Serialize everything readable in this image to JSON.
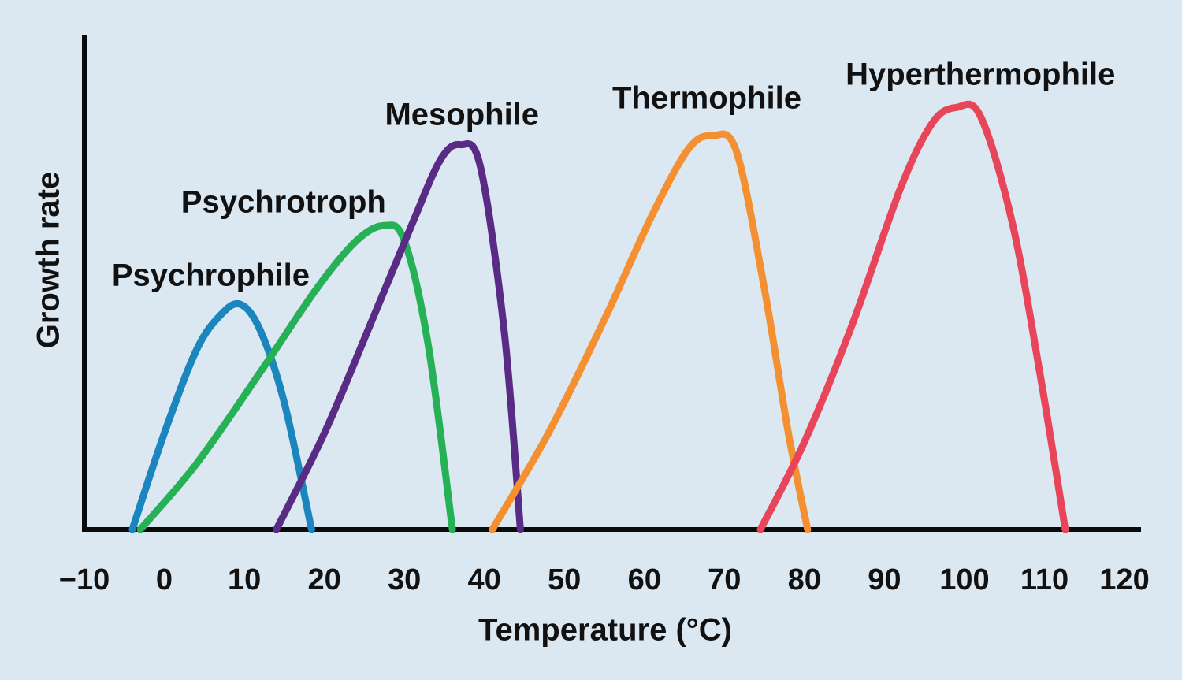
{
  "figure": {
    "background": "#dbe7f1",
    "axis_color": "#0a0a0a",
    "text_color": "#111111"
  },
  "chart_data": {
    "type": "line",
    "title": "",
    "xlabel": "Temperature (°C)",
    "ylabel": "Growth rate",
    "xlim": [
      -10,
      120
    ],
    "ylim": [
      0,
      1.1
    ],
    "grid": false,
    "legend_position": "inline-curve-labels",
    "x_ticks": [
      -10,
      0,
      10,
      20,
      30,
      40,
      50,
      60,
      70,
      80,
      90,
      100,
      110,
      120
    ],
    "x_tick_labels": [
      "−10",
      "0",
      "10",
      "20",
      "30",
      "40",
      "50",
      "60",
      "70",
      "80",
      "90",
      "100",
      "110",
      "120"
    ],
    "series": [
      {
        "name": "Psychrophile",
        "color": "#1b86be",
        "points": [
          [
            -4,
            0
          ],
          [
            0,
            0.22
          ],
          [
            4,
            0.41
          ],
          [
            7,
            0.49
          ],
          [
            9.5,
            0.515
          ],
          [
            12,
            0.455
          ],
          [
            15,
            0.29
          ],
          [
            18.4,
            0
          ]
        ],
        "label_at": [
          5.8,
          0.58
        ]
      },
      {
        "name": "Psychrotroph",
        "color": "#27b157",
        "points": [
          [
            -3,
            0
          ],
          [
            4,
            0.15
          ],
          [
            12,
            0.36
          ],
          [
            19,
            0.55
          ],
          [
            24,
            0.66
          ],
          [
            27.5,
            0.695
          ],
          [
            30,
            0.66
          ],
          [
            33,
            0.42
          ],
          [
            36,
            0
          ]
        ],
        "label_at": [
          14.9,
          0.747
        ]
      },
      {
        "name": "Mesophile",
        "color": "#5a2b84",
        "points": [
          [
            14,
            0
          ],
          [
            20,
            0.22
          ],
          [
            26,
            0.48
          ],
          [
            31,
            0.7
          ],
          [
            34.5,
            0.845
          ],
          [
            37,
            0.88
          ],
          [
            39.5,
            0.83
          ],
          [
            42.5,
            0.45
          ],
          [
            44.5,
            0
          ]
        ],
        "label_at": [
          37.2,
          0.948
        ]
      },
      {
        "name": "Thermophile",
        "color": "#f49031",
        "points": [
          [
            41,
            0
          ],
          [
            48,
            0.22
          ],
          [
            55,
            0.48
          ],
          [
            61,
            0.72
          ],
          [
            65.5,
            0.87
          ],
          [
            68.5,
            0.9
          ],
          [
            71.5,
            0.865
          ],
          [
            75,
            0.55
          ],
          [
            78,
            0.22
          ],
          [
            80.4,
            0
          ]
        ],
        "label_at": [
          67.8,
          0.985
        ]
      },
      {
        "name": "Hyperthermophile",
        "color": "#e8445a",
        "points": [
          [
            74.5,
            0
          ],
          [
            80,
            0.2
          ],
          [
            86,
            0.47
          ],
          [
            92,
            0.78
          ],
          [
            96,
            0.93
          ],
          [
            99,
            0.965
          ],
          [
            102,
            0.945
          ],
          [
            106,
            0.7
          ],
          [
            109.5,
            0.35
          ],
          [
            112.6,
            0
          ]
        ],
        "label_at": [
          102,
          1.04
        ]
      }
    ]
  }
}
